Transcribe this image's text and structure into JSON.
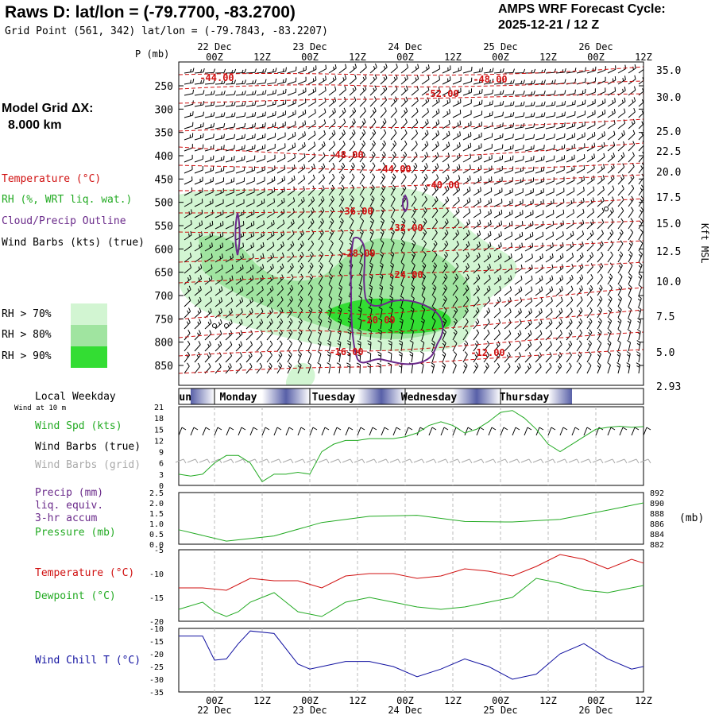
{
  "header": {
    "title": "Raws D:  lat/lon = (-79.7700, -83.2700)",
    "grid_point": "Grid Point (561, 342) lat/lon = (-79.7843, -83.2207)",
    "cycle_line1": "AMPS WRF Forecast Cycle:",
    "cycle_line2": "2025-12-21 / 12  Z",
    "model_grid_line1": "Model Grid ΔX:",
    "model_grid_line2": "8.000 km"
  },
  "colors": {
    "temperature": "#d01010",
    "rh": "#22aa22",
    "cloud": "#6a2a8a",
    "wind_chill": "#1010a0",
    "grid_barbs": "#aaaaaa",
    "rh70": "#d2f5d2",
    "rh80": "#a0e4a0",
    "rh90": "#33dd33",
    "weekday_band": "#5860a8"
  },
  "time_axis": {
    "ticks": [
      "",
      "00Z",
      "12Z",
      "00Z",
      "12Z",
      "00Z",
      "12Z",
      "00Z",
      "12Z",
      "00Z",
      "12Z"
    ],
    "dates": [
      "22 Dec",
      "23 Dec",
      "24 Dec",
      "25 Dec",
      "26 Dec"
    ]
  },
  "legend": {
    "temperature": "Temperature (°C)",
    "rh": "RH (%, WRT liq. wat.)",
    "cloud": "Cloud/Precip Outline",
    "barbs": "Wind Barbs (kts) (true)",
    "rh70": "RH > 70%",
    "rh80": "RH > 80%",
    "rh90": "RH > 90%"
  },
  "weekday": {
    "label": "Local Weekday",
    "wind_note": "Wind at 10 m",
    "days": [
      "unday",
      "Monday",
      "Tuesday",
      "Wednesday",
      "Thursday"
    ]
  },
  "panel_labels": {
    "wind_spd": "Wind Spd (kts)",
    "wind_barbs_true": "Wind Barbs (true)",
    "wind_barbs_grid": "Wind Barbs (grid)",
    "precip_1": "Precip (mm)",
    "precip_2": "liq. equiv.",
    "precip_3": "3-hr accum",
    "pressure": "Pressure (mb)",
    "pressure_unit": "(mb)",
    "temperature": "Temperature (°C)",
    "dewpoint": "Dewpoint (°C)",
    "wind_chill": "Wind Chill T (°C)"
  },
  "chart_data": [
    {
      "type": "line",
      "ylabel": "P (mb)",
      "ylabel_right": "Kft MSL",
      "pressure_ticks": [
        250,
        300,
        350,
        400,
        450,
        500,
        550,
        600,
        650,
        700,
        750,
        800,
        850
      ],
      "height_ticks": [
        "35.0",
        "30.0",
        "25.0",
        "22.5",
        "20.0",
        "17.5",
        "15.0",
        "12.5",
        "10.0",
        "7.5",
        "5.0",
        "2.93"
      ],
      "temperature_labels": [
        "-44.00",
        "-48.00",
        "-52.00",
        "-48.00",
        "-44.00",
        "-40.00",
        "-36.00",
        "-32.00",
        "-28.00",
        "-24.00",
        "-20.00",
        "-16.00",
        "-12.00"
      ]
    },
    {
      "type": "line",
      "name": "Wind Spd (kts)",
      "yticks": [
        0,
        3,
        6,
        9,
        12,
        15,
        18,
        21
      ],
      "ylim": [
        0,
        21
      ],
      "x": [
        0,
        3,
        6,
        9,
        12,
        15,
        18,
        21,
        24,
        27,
        30,
        33,
        36,
        39,
        42,
        45,
        48,
        51,
        54,
        57,
        60,
        63,
        66,
        69,
        72,
        75,
        78,
        81,
        84,
        87,
        90,
        93,
        96,
        99,
        102,
        105,
        108,
        111,
        114,
        117
      ],
      "values": [
        3,
        2.5,
        3,
        6,
        8,
        8,
        6,
        1,
        3,
        3,
        3.5,
        3,
        9,
        11,
        12,
        12,
        12.5,
        12.5,
        12.5,
        13,
        14,
        16,
        17,
        16,
        14,
        15,
        17,
        19.5,
        20,
        18,
        15,
        11,
        9,
        11,
        13,
        15,
        15.5,
        15.8,
        15.5,
        15.7
      ]
    },
    {
      "type": "line",
      "name": "Pressure (mb)",
      "yticks_left": [
        "0.0",
        "0.5",
        "1.0",
        "1.5",
        "2.0",
        "2.5"
      ],
      "yticks_right": [
        882,
        884,
        886,
        888,
        890,
        892
      ],
      "ylim": [
        882,
        892
      ],
      "x": [
        0,
        12,
        24,
        36,
        48,
        60,
        72,
        84,
        96,
        108,
        117
      ],
      "values": [
        884.8,
        882.6,
        883.6,
        886.2,
        887.4,
        887.6,
        886.4,
        886.3,
        886.8,
        888.6,
        890.0
      ]
    },
    {
      "type": "line",
      "yticks": [
        -5,
        -10,
        -15,
        -20
      ],
      "ylim": [
        -20,
        -5
      ],
      "series": [
        {
          "name": "Temperature (°C)",
          "x": [
            0,
            6,
            12,
            18,
            24,
            30,
            36,
            42,
            48,
            54,
            60,
            66,
            72,
            78,
            84,
            90,
            96,
            102,
            108,
            114,
            117
          ],
          "values": [
            -13,
            -13,
            -13.5,
            -11,
            -11.5,
            -11.5,
            -13,
            -10.5,
            -10,
            -10,
            -11,
            -10.5,
            -9,
            -9.5,
            -10.5,
            -8.5,
            -6,
            -7,
            -9,
            -7,
            -7.8
          ]
        },
        {
          "name": "Dewpoint (°C)",
          "x": [
            0,
            6,
            9,
            12,
            15,
            18,
            24,
            27,
            30,
            36,
            42,
            48,
            54,
            60,
            66,
            72,
            78,
            84,
            90,
            96,
            102,
            108,
            114,
            117
          ],
          "values": [
            -17.5,
            -16,
            -18,
            -19,
            -18,
            -16,
            -14,
            -16,
            -18,
            -19,
            -16,
            -15,
            -16,
            -17,
            -17.5,
            -17,
            -16,
            -15,
            -11,
            -12,
            -13.5,
            -14,
            -13,
            -12.5
          ]
        }
      ]
    },
    {
      "type": "line",
      "name": "Wind Chill T (°C)",
      "yticks": [
        -10,
        -15,
        -20,
        -25,
        -30,
        -35
      ],
      "ylim": [
        -35,
        -10
      ],
      "x": [
        0,
        6,
        9,
        12,
        15,
        18,
        24,
        30,
        33,
        36,
        42,
        48,
        54,
        60,
        66,
        72,
        78,
        84,
        90,
        96,
        102,
        108,
        114,
        117
      ],
      "values": [
        -13,
        -13,
        -22.5,
        -22,
        -16,
        -11,
        -12,
        -24,
        -26,
        -25,
        -23,
        -23,
        -25,
        -29,
        -26,
        -22,
        -25,
        -30,
        -28,
        -20,
        -16,
        -22,
        -26,
        -25
      ]
    }
  ]
}
